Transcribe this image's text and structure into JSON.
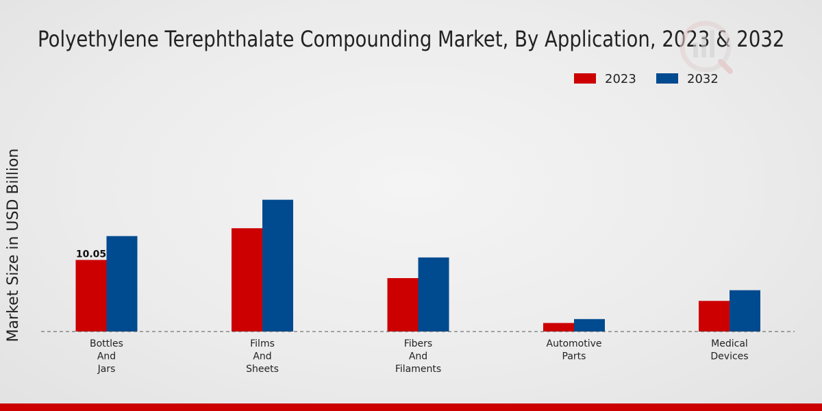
{
  "chart_data": {
    "type": "bar",
    "title": "Polyethylene Terephthalate Compounding Market, By Application, 2023 & 2032",
    "xlabel": "",
    "ylabel": "Market Size in USD Billion",
    "categories": [
      [
        "Bottles",
        "And",
        "Jars"
      ],
      [
        "Films",
        "And",
        "Sheets"
      ],
      [
        "Fibers",
        "And",
        "Filaments"
      ],
      [
        "Automotive",
        "Parts"
      ],
      [
        "Medical",
        "Devices"
      ]
    ],
    "series": [
      {
        "name": "2023",
        "color": "#cc0000",
        "values": [
          10.05,
          14.5,
          7.5,
          1.2,
          4.3
        ]
      },
      {
        "name": "2032",
        "color": "#004a8f",
        "values": [
          13.4,
          18.5,
          10.4,
          1.75,
          5.8
        ]
      }
    ],
    "data_labels": [
      {
        "series": 0,
        "index": 0,
        "text": "10.05"
      }
    ],
    "ylim": [
      0,
      30
    ],
    "grid": false,
    "legend_position": "top-right"
  }
}
